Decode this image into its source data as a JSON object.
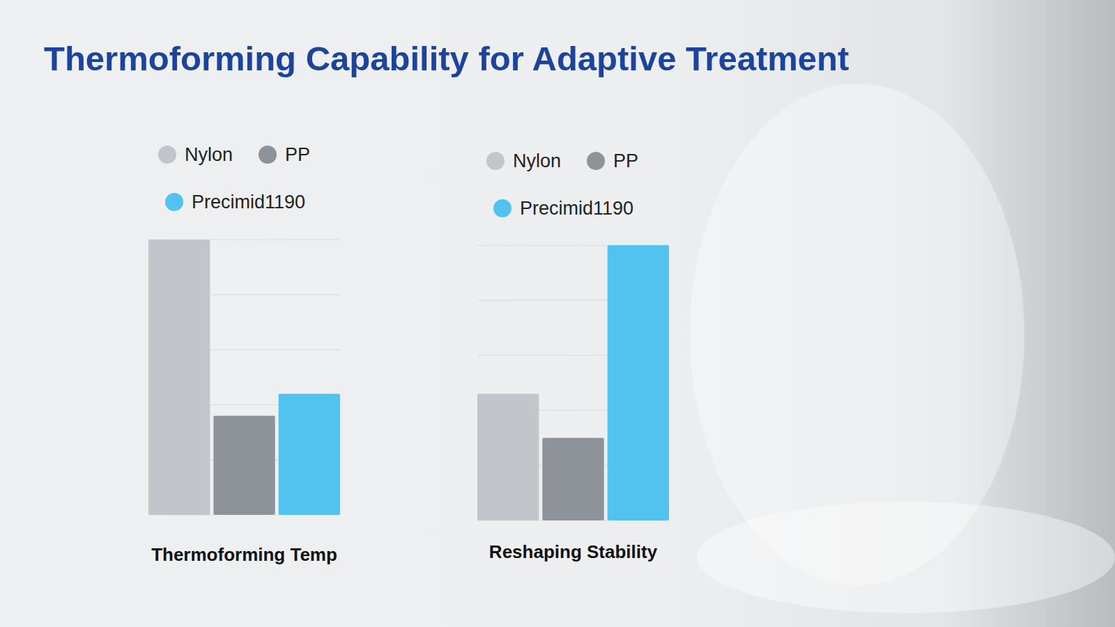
{
  "title": "Thermoforming Capability for Adaptive Treatment",
  "chart_data": [
    {
      "type": "bar",
      "categories": [
        "Thermoforming Temp"
      ],
      "series": [
        {
          "name": "Nylon",
          "color": "#c2c5ca",
          "values": [
            5.0
          ]
        },
        {
          "name": "PP",
          "color": "#8e9299",
          "values": [
            1.8
          ]
        },
        {
          "name": "Precimid1190",
          "color": "#52c3f0",
          "values": [
            2.2
          ]
        }
      ],
      "ylim": [
        0,
        5
      ],
      "yticks": [
        0,
        1,
        2,
        3,
        4,
        5
      ],
      "grid": true,
      "legend": "top",
      "tick_labels": false
    },
    {
      "type": "bar",
      "categories": [
        "Reshaping Stability"
      ],
      "series": [
        {
          "name": "Nylon",
          "color": "#c2c5ca",
          "values": [
            2.3
          ]
        },
        {
          "name": "PP",
          "color": "#8e9299",
          "values": [
            1.5
          ]
        },
        {
          "name": "Precimid1190",
          "color": "#52c3f0",
          "values": [
            5.0
          ]
        }
      ],
      "ylim": [
        0,
        5
      ],
      "yticks": [
        0,
        1,
        2,
        3,
        4,
        5
      ],
      "grid": true,
      "legend": "top",
      "tick_labels": false
    }
  ]
}
